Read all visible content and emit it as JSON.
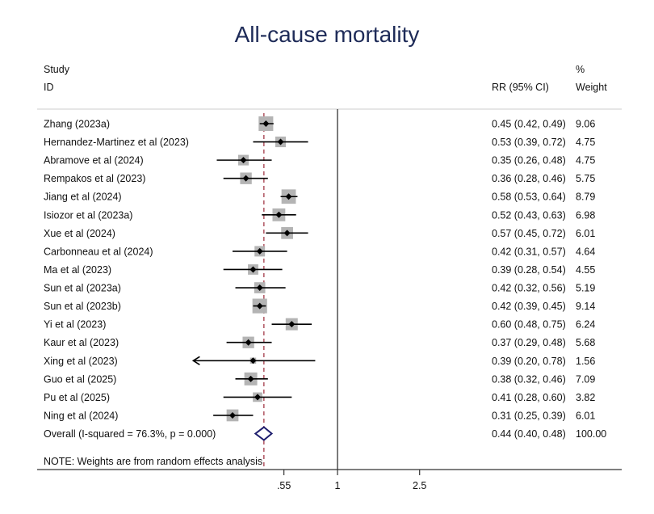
{
  "chart_data": {
    "type": "forest",
    "title": "All-cause mortality",
    "headers": {
      "study_top": "Study",
      "study_bottom": "ID",
      "effect": "RR (95% CI)",
      "weight_top": "%",
      "weight_bottom": "Weight"
    },
    "scale": "log",
    "xticks": [
      0.55,
      1,
      2.5
    ],
    "xtick_labels": [
      ".55",
      "1",
      "2.5"
    ],
    "xlim": [
      0.2,
      23.8
    ],
    "null_line": 1,
    "studies": [
      {
        "id": "Zhang (2023a)",
        "rr": 0.45,
        "lo": 0.42,
        "hi": 0.49,
        "ci_text": "0.45 (0.42, 0.49)",
        "weight": "9.06"
      },
      {
        "id": "Hernandez-Martinez et al (2023)",
        "rr": 0.53,
        "lo": 0.39,
        "hi": 0.72,
        "ci_text": "0.53 (0.39, 0.72)",
        "weight": "4.75"
      },
      {
        "id": "Abramove et al (2024)",
        "rr": 0.35,
        "lo": 0.26,
        "hi": 0.48,
        "ci_text": "0.35 (0.26, 0.48)",
        "weight": "4.75"
      },
      {
        "id": "Rempakos et al (2023)",
        "rr": 0.36,
        "lo": 0.28,
        "hi": 0.46,
        "ci_text": "0.36 (0.28, 0.46)",
        "weight": "5.75"
      },
      {
        "id": "Jiang et al (2024)",
        "rr": 0.58,
        "lo": 0.53,
        "hi": 0.64,
        "ci_text": "0.58 (0.53, 0.64)",
        "weight": "8.79"
      },
      {
        "id": "Isiozor et al (2023a)",
        "rr": 0.52,
        "lo": 0.43,
        "hi": 0.63,
        "ci_text": "0.52 (0.43, 0.63)",
        "weight": "6.98"
      },
      {
        "id": "Xue et al (2024)",
        "rr": 0.57,
        "lo": 0.45,
        "hi": 0.72,
        "ci_text": "0.57 (0.45, 0.72)",
        "weight": "6.01"
      },
      {
        "id": "Carbonneau et al (2024)",
        "rr": 0.42,
        "lo": 0.31,
        "hi": 0.57,
        "ci_text": "0.42 (0.31, 0.57)",
        "weight": "4.64"
      },
      {
        "id": "Ma et al (2023)",
        "rr": 0.39,
        "lo": 0.28,
        "hi": 0.54,
        "ci_text": "0.39 (0.28, 0.54)",
        "weight": "4.55"
      },
      {
        "id": "Sun et al (2023a)",
        "rr": 0.42,
        "lo": 0.32,
        "hi": 0.56,
        "ci_text": "0.42 (0.32, 0.56)",
        "weight": "5.19"
      },
      {
        "id": "Sun et al (2023b)",
        "rr": 0.42,
        "lo": 0.39,
        "hi": 0.45,
        "ci_text": "0.42 (0.39, 0.45)",
        "weight": "9.14"
      },
      {
        "id": "Yi et al (2023)",
        "rr": 0.6,
        "lo": 0.48,
        "hi": 0.75,
        "ci_text": "0.60 (0.48, 0.75)",
        "weight": "6.24"
      },
      {
        "id": "Kaur et al (2023)",
        "rr": 0.37,
        "lo": 0.29,
        "hi": 0.48,
        "ci_text": "0.37 (0.29, 0.48)",
        "weight": "5.68"
      },
      {
        "id": "Xing et al (2023)",
        "rr": 0.39,
        "lo": 0.2,
        "hi": 0.78,
        "ci_text": "0.39 (0.20, 0.78)",
        "weight": "1.56"
      },
      {
        "id": "Guo et al (2025)",
        "rr": 0.38,
        "lo": 0.32,
        "hi": 0.46,
        "ci_text": "0.38 (0.32, 0.46)",
        "weight": "7.09"
      },
      {
        "id": "Pu et al  (2025)",
        "rr": 0.41,
        "lo": 0.28,
        "hi": 0.6,
        "ci_text": "0.41 (0.28, 0.60)",
        "weight": "3.82"
      },
      {
        "id": "Ning et al (2024)",
        "rr": 0.31,
        "lo": 0.25,
        "hi": 0.39,
        "ci_text": "0.31 (0.25, 0.39)",
        "weight": "6.01"
      }
    ],
    "overall": {
      "label": "Overall  (I-squared = 76.3%, p = 0.000)",
      "rr": 0.44,
      "lo": 0.4,
      "hi": 0.48,
      "ci_text": "0.44 (0.40, 0.48)",
      "weight": "100.00"
    },
    "note": "NOTE: Weights are from random effects analysis",
    "colors": {
      "title": "#1e2b58",
      "box": "#b4b4b4",
      "diamond": "#1e1e6e",
      "ref_line": "#9b2a3a"
    }
  }
}
